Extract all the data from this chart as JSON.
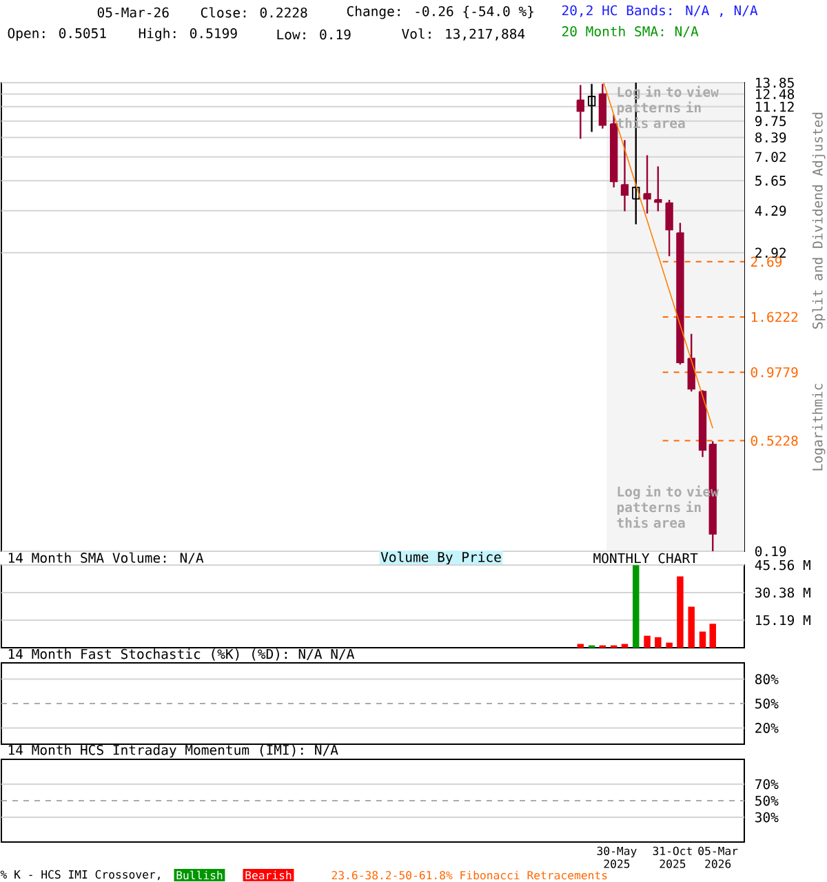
{
  "chart_data": [
    {
      "type": "candlestick",
      "x": [
        "2025-03",
        "2025-04",
        "2025-05",
        "2025-06",
        "2025-07",
        "2025-08",
        "2025-09",
        "2025-10",
        "2025-11",
        "2025-12",
        "2026-01",
        "2026-02",
        "2026-03"
      ],
      "ohlc": [
        [
          11.8,
          13.56,
          8.29,
          10.67
        ],
        [
          11.22,
          13.7,
          8.83,
          12.21
        ],
        [
          12.48,
          13.7,
          9.1,
          9.4
        ],
        [
          9.49,
          10.32,
          5.31,
          5.61
        ],
        [
          5.44,
          8.19,
          4.27,
          4.95
        ],
        [
          4.78,
          13.85,
          3.79,
          5.31
        ],
        [
          5.01,
          7.13,
          4.18,
          4.78
        ],
        [
          4.74,
          6.44,
          4.27,
          4.64
        ],
        [
          4.6,
          4.74,
          2.83,
          3.61
        ],
        [
          3.5,
          3.84,
          1.05,
          1.07
        ],
        [
          1.11,
          1.39,
          0.82,
          0.84
        ],
        [
          0.82,
          0.83,
          0.45,
          0.48
        ],
        [
          0.5051,
          0.5199,
          0.19,
          0.2228
        ]
      ],
      "colors": [
        "#990033",
        "#000000",
        "#990033",
        "#990033",
        "#990033",
        "#000000",
        "#990033",
        "#990033",
        "#990033",
        "#990033",
        "#990033",
        "#990033",
        "#990033"
      ],
      "series": [
        {
          "type": "line",
          "x": [
            "2025-05-04",
            "2026-03-01"
          ],
          "values": [
            13.85,
            0.586
          ],
          "color": "#ff8000"
        }
      ],
      "log": true,
      "xlim": [
        "2020-10-15",
        "2026-05-27"
      ],
      "ylim": [
        0.19,
        13.85
      ],
      "yticks": [
        13.85,
        12.48,
        11.12,
        9.75,
        8.39,
        7.02,
        5.65,
        4.29,
        2.92,
        0.19
      ],
      "grid": "y",
      "tick_labels": "y",
      "ylabel": "Split and Dividend Adjusted",
      "ref_lines": [
        {
          "axis": "y",
          "value": 2.69,
          "label": "2.69",
          "color": "#ff6600",
          "line_style": "dashed"
        },
        {
          "axis": "y",
          "value": 1.6222,
          "label": "1.6222",
          "color": "#ff6600",
          "line_style": "dashed"
        },
        {
          "axis": "y",
          "value": 0.9779,
          "label": "0.9779",
          "color": "#ff6600",
          "line_style": "dashed"
        },
        {
          "axis": "y",
          "value": 0.5228,
          "label": "0.5228",
          "color": "#ff6600",
          "line_style": "dashed"
        }
      ],
      "bands": [
        {
          "axis": "x",
          "from": "2025-05-12",
          "to": "2026-05-27",
          "color": "#f4f4f4"
        }
      ],
      "annotations": [
        "05-Mar-26",
        "Close: 0.2228",
        "Change: -0.26 {-54.0 %}",
        "20,2 HC Bands: N/A , N/A",
        "Open: 0.5051",
        "High: 0.5199",
        "Low: 0.19",
        "Vol: 13,217,884",
        "20 Month SMA: N/A",
        "Log in to view patterns in this area",
        "Log in to view patterns in this area",
        "Logarithmic",
        "Volume By Price"
      ]
    },
    {
      "type": "bar",
      "title": "14 Month SMA Volume: N/A",
      "x": [
        "2025-03",
        "2025-04",
        "2025-05",
        "2025-06",
        "2025-07",
        "2025-08",
        "2025-09",
        "2025-10",
        "2025-11",
        "2025-12",
        "2026-01",
        "2026-02",
        "2026-03"
      ],
      "values": [
        2.1,
        1.3,
        1.3,
        1.3,
        2.1,
        45.5,
        6.6,
        5.8,
        2.8,
        39.3,
        22.6,
        8.9,
        13.2
      ],
      "colors": [
        "#ff0000",
        "#009900",
        "#ff0000",
        "#ff0000",
        "#ff0000",
        "#009900",
        "#ff0000",
        "#ff0000",
        "#ff0000",
        "#ff0000",
        "#ff0000",
        "#ff0000",
        "#ff0000"
      ],
      "xlim": [
        "2020-10-15",
        "2026-05-27"
      ],
      "ylim": [
        0,
        45.56
      ],
      "yticks": [
        {
          "value": 45.56,
          "label": "45.56 M"
        },
        {
          "value": 30.38,
          "label": "30.38 M"
        },
        {
          "value": 15.19,
          "label": "15.19 M"
        }
      ],
      "grid": "y",
      "tick_labels": "y",
      "annotations": [
        "MONTHLY CHART"
      ]
    },
    {
      "type": "line",
      "title": "14 Month Fast Stochastic (%K) (%D): N/A N/A",
      "xlim": [
        "2020-10-15",
        "2026-05-27"
      ],
      "ylim": [
        0,
        100
      ],
      "yticks": [
        {
          "value": 80,
          "label": "80%"
        },
        {
          "value": 50,
          "label": "50%"
        },
        {
          "value": 20,
          "label": "20%"
        }
      ],
      "grid": "y",
      "tick_labels": "y",
      "ref_lines": [
        {
          "axis": "y",
          "value": 50,
          "color": "#aaaaaa",
          "line_style": "dashed"
        }
      ]
    },
    {
      "type": "line",
      "title": "14 Month HCS Intraday Momentum (IMI): N/A",
      "xlim": [
        "2020-10-15",
        "2026-05-27"
      ],
      "ylim": [
        0,
        100
      ],
      "xticks": [
        {
          "value": "2025-05-30",
          "label": "30-May 2025"
        },
        {
          "value": "2025-10-31",
          "label": "31-Oct 2025"
        },
        {
          "value": "2026-03-05",
          "label": "05-Mar 2026"
        }
      ],
      "yticks": [
        {
          "value": 70,
          "label": "70%"
        },
        {
          "value": 50,
          "label": "50%"
        },
        {
          "value": 30,
          "label": "30%"
        }
      ],
      "grid": "y",
      "ref_lines": [
        {
          "axis": "y",
          "value": 50,
          "color": "#aaaaaa",
          "line_style": "dashed"
        }
      ],
      "annotations": [
        "% K - HCS IMI Crossover,",
        "Bullish",
        "Bearish",
        "23.6-38.2-50-61.8% Fibonacci Retracements"
      ]
    }
  ]
}
